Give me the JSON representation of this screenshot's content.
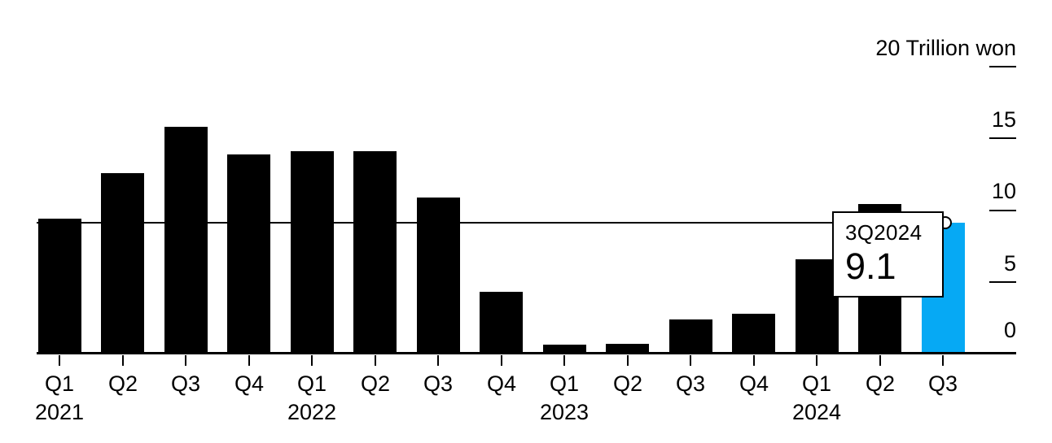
{
  "chart_data": {
    "type": "bar",
    "unit_label": "20 Trillion won",
    "categories": [
      "Q1",
      "Q2",
      "Q3",
      "Q4",
      "Q1",
      "Q2",
      "Q3",
      "Q4",
      "Q1",
      "Q2",
      "Q3",
      "Q4",
      "Q1",
      "Q2",
      "Q3"
    ],
    "year_markers": [
      {
        "index": 0,
        "label": "2021"
      },
      {
        "index": 4,
        "label": "2022"
      },
      {
        "index": 8,
        "label": "2023"
      },
      {
        "index": 12,
        "label": "2024"
      }
    ],
    "values": [
      9.4,
      12.6,
      15.8,
      13.9,
      14.1,
      14.1,
      10.9,
      4.3,
      0.6,
      0.7,
      2.4,
      2.8,
      6.6,
      10.4,
      9.1
    ],
    "highlight_index": 14,
    "y_ticks": [
      {
        "value": 20,
        "label": "20 Trillion won"
      },
      {
        "value": 15,
        "label": "15"
      },
      {
        "value": 10,
        "label": "10"
      },
      {
        "value": 5,
        "label": "5"
      },
      {
        "value": 0,
        "label": "0"
      }
    ],
    "ylim": [
      0,
      20
    ],
    "xlabel": "",
    "ylabel": "Trillion won",
    "reference_line_value": 9.1,
    "bar_color": "#000000",
    "highlight_color": "#06a9f4",
    "background_color": "#ffffff",
    "grid": "off",
    "legend": "none"
  },
  "tooltip": {
    "title": "3Q2024",
    "value": "9.1"
  }
}
